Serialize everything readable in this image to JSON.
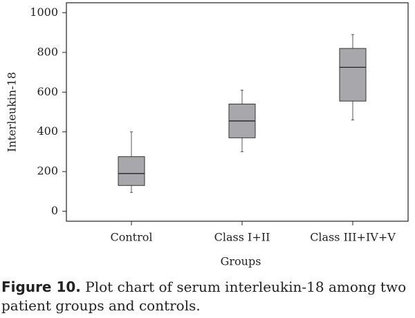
{
  "chart_data": {
    "type": "box",
    "y_label": "Interleukin-18",
    "x_label": "Groups",
    "categories": [
      "Control",
      "Class I+II",
      "Class III+IV+V"
    ],
    "min": [
      95,
      300,
      460
    ],
    "q1": [
      130,
      370,
      555
    ],
    "median": [
      190,
      455,
      725
    ],
    "q3": [
      275,
      540,
      820
    ],
    "max": [
      400,
      610,
      890
    ],
    "color": "#a8a8ac",
    "ylim": [
      -50,
      1050
    ],
    "yticks": [
      0,
      200,
      400,
      600,
      800,
      1000
    ]
  },
  "caption": {
    "label": "Figure 10.",
    "text": "Plot chart of serum interleukin-18 among two patient groups and controls."
  }
}
